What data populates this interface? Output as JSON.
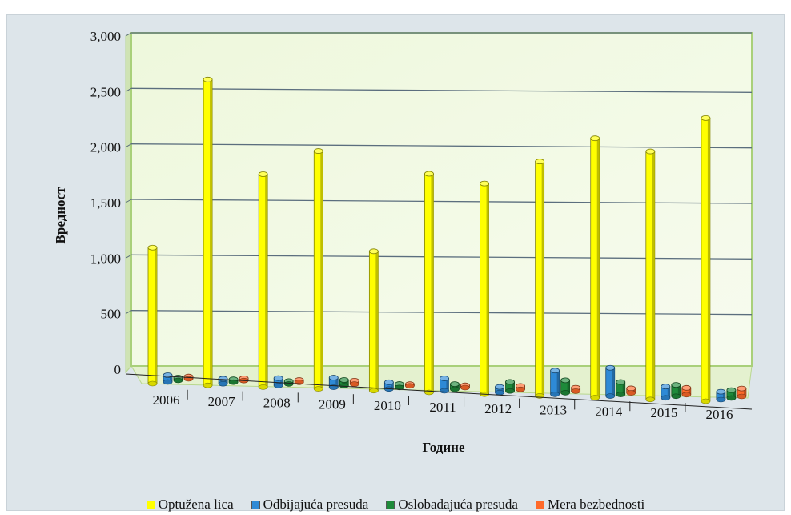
{
  "chart_data": {
    "type": "bar",
    "title": "",
    "xlabel": "Године",
    "ylabel": "Вредност",
    "ylim": [
      0,
      3000
    ],
    "yticks": [
      "0",
      "500",
      "1,000",
      "1,500",
      "2,000",
      "2,500",
      "3,000"
    ],
    "yticks_values": [
      0,
      500,
      1000,
      1500,
      2000,
      2500,
      3000
    ],
    "categories": [
      "2006",
      "2007",
      "2008",
      "2009",
      "2010",
      "2011",
      "2012",
      "2013",
      "2014",
      "2015",
      "2016"
    ],
    "series": [
      {
        "name": "Optužena lica",
        "color": "#ffff00",
        "values": [
          1200,
          2700,
          1880,
          2100,
          1230,
          1930,
          1860,
          2070,
          2290,
          2190,
          2500
        ]
      },
      {
        "name": "Odbijajuća presuda",
        "color": "#2e8ad6",
        "values": [
          60,
          45,
          65,
          85,
          60,
          110,
          50,
          210,
          250,
          100,
          70
        ]
      },
      {
        "name": "Oslobađajuća presuda",
        "color": "#1e8a3a",
        "values": [
          25,
          25,
          25,
          50,
          30,
          45,
          80,
          110,
          110,
          100,
          70
        ]
      },
      {
        "name": "Mera bezbednosti",
        "color": "#ff6a2a",
        "values": [
          20,
          20,
          20,
          30,
          15,
          20,
          30,
          30,
          40,
          60,
          70
        ]
      }
    ],
    "grid": true,
    "legend_position": "bottom"
  }
}
